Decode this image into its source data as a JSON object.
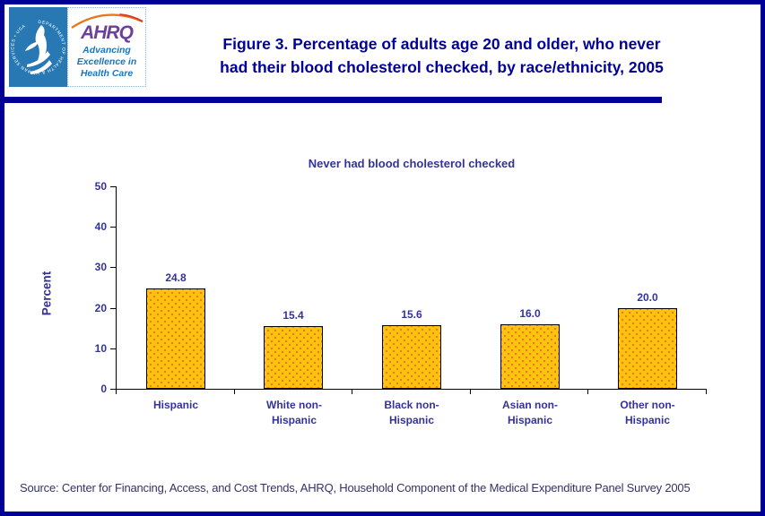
{
  "colors": {
    "border_navy": "#000099",
    "label_navy": "#333399",
    "bar_gold": "#FFC20E",
    "bar_dot_orange": "#E0761C",
    "hhs_blue": "#2778B3",
    "ahrq_purple": "#6B4199",
    "tagline_blue": "#1B75BB",
    "source_text": "#333366"
  },
  "header": {
    "hhs_logo": {
      "circle_text": "DEPARTMENT OF HEALTH & HUMAN SERVICES • USA"
    },
    "ahrq_logo": {
      "acronym": "AHRQ",
      "tagline_line1": "Advancing",
      "tagline_line2": "Excellence in",
      "tagline_line3": "Health Care"
    },
    "title_line1": "Figure 3. Percentage of adults age 20 and older, who never",
    "title_line2": "had their blood cholesterol checked, by race/ethnicity, 2005"
  },
  "chart_data": {
    "type": "bar",
    "title": "Never had blood cholesterol checked",
    "xlabel": "",
    "ylabel": "Percent",
    "categories": [
      "Hispanic",
      "White non-\nHispanic",
      "Black non-\nHispanic",
      "Asian non-\nHispanic",
      "Other non-\nHispanic"
    ],
    "values": [
      24.8,
      15.4,
      15.6,
      16.0,
      20.0
    ],
    "value_labels": [
      "24.8",
      "15.4",
      "15.6",
      "16.0",
      "20.0"
    ],
    "ylim": [
      0,
      50
    ],
    "yticks": [
      0,
      10,
      20,
      30,
      40,
      50
    ],
    "grid": false,
    "legend_position": "none"
  },
  "source": {
    "text": "Source: Center for Financing, Access, and Cost Trends, AHRQ, Household Component of the Medical Expenditure Panel Survey 2005"
  }
}
